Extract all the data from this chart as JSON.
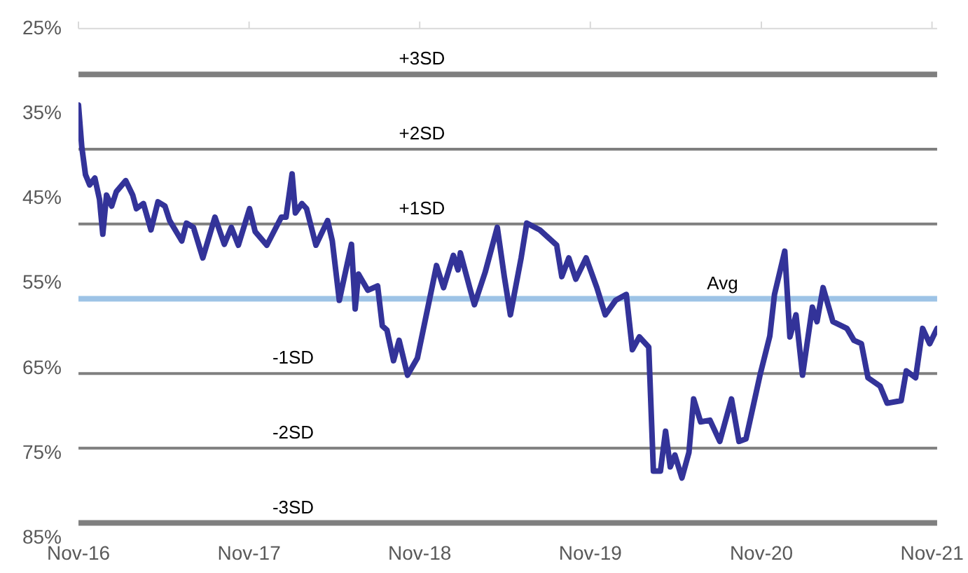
{
  "chart_data": {
    "type": "line",
    "x": [
      "2016-11-01",
      "2016-11-08",
      "2016-11-16",
      "2016-11-25",
      "2016-12-06",
      "2016-12-16",
      "2016-12-23",
      "2016-12-31",
      "2017-01-11",
      "2017-01-21",
      "2017-02-10",
      "2017-02-25",
      "2017-03-05",
      "2017-03-20",
      "2017-04-05",
      "2017-04-20",
      "2017-05-05",
      "2017-05-15",
      "2017-06-10",
      "2017-06-20",
      "2017-07-05",
      "2017-07-25",
      "2017-08-20",
      "2017-09-09",
      "2017-09-24",
      "2017-10-09",
      "2017-11-02",
      "2017-11-14",
      "2017-12-09",
      "2018-01-09",
      "2018-01-19",
      "2018-02-01",
      "2018-02-08",
      "2018-02-22",
      "2018-03-04",
      "2018-03-24",
      "2018-04-18",
      "2018-04-28",
      "2018-05-13",
      "2018-06-08",
      "2018-06-16",
      "2018-06-23",
      "2018-07-13",
      "2018-08-03",
      "2018-08-13",
      "2018-08-23",
      "2018-09-06",
      "2018-09-18",
      "2018-10-06",
      "2018-10-27",
      "2018-12-07",
      "2018-12-22",
      "2019-01-12",
      "2019-01-22",
      "2019-01-27",
      "2019-02-16",
      "2019-02-26",
      "2019-03-21",
      "2019-04-16",
      "2019-05-01",
      "2019-05-14",
      "2019-06-06",
      "2019-06-18",
      "2019-07-16",
      "2019-08-21",
      "2019-09-01",
      "2019-09-16",
      "2019-10-01",
      "2019-10-23",
      "2019-11-15",
      "2019-12-03",
      "2019-12-25",
      "2020-01-17",
      "2020-01-30",
      "2020-02-14",
      "2020-03-05",
      "2020-03-15",
      "2020-03-30",
      "2020-04-10",
      "2020-04-20",
      "2020-04-30",
      "2020-05-15",
      "2020-05-30",
      "2020-06-09",
      "2020-06-24",
      "2020-07-14",
      "2020-08-04",
      "2020-08-29",
      "2020-09-14",
      "2020-09-29",
      "2020-10-29",
      "2020-11-19",
      "2020-11-29",
      "2020-12-21",
      "2021-01-01",
      "2021-01-14",
      "2021-01-28",
      "2021-02-18",
      "2021-02-28",
      "2021-03-13",
      "2021-04-03",
      "2021-05-03",
      "2021-05-18",
      "2021-06-03",
      "2021-06-17",
      "2021-07-13",
      "2021-07-28",
      "2021-08-27",
      "2021-09-07",
      "2021-09-27",
      "2021-10-12",
      "2021-10-27",
      "2021-11-12"
    ],
    "series": [
      {
        "color": "#333399",
        "values": [
          34.0,
          38.9,
          42.2,
          43.4,
          42.6,
          45.1,
          49.2,
          44.6,
          45.9,
          44.2,
          42.9,
          44.6,
          46.2,
          45.6,
          48.7,
          45.4,
          45.9,
          47.6,
          50.0,
          47.9,
          48.4,
          52.0,
          47.2,
          50.4,
          48.4,
          50.5,
          46.2,
          48.9,
          50.5,
          47.2,
          47.2,
          42.1,
          46.7,
          45.6,
          46.2,
          50.5,
          47.6,
          50.0,
          57.0,
          50.4,
          58.0,
          53.9,
          55.8,
          55.3,
          60.0,
          60.5,
          64.1,
          61.7,
          65.8,
          63.8,
          52.9,
          55.5,
          51.7,
          53.4,
          51.4,
          55.5,
          57.5,
          53.7,
          48.4,
          54.2,
          58.7,
          52.0,
          47.9,
          48.7,
          50.5,
          54.2,
          52.0,
          54.5,
          52.0,
          55.5,
          58.7,
          57.0,
          56.3,
          62.8,
          61.3,
          62.5,
          77.1,
          77.1,
          72.4,
          76.6,
          75.2,
          77.9,
          74.9,
          68.6,
          71.3,
          71.1,
          73.6,
          68.6,
          73.6,
          73.3,
          65.8,
          61.2,
          56.3,
          51.2,
          61.3,
          58.7,
          65.8,
          57.8,
          59.5,
          55.5,
          59.5,
          60.3,
          61.7,
          62.1,
          66.1,
          67.1,
          69.1,
          68.8,
          65.3,
          66.1,
          60.3,
          62.1,
          60.3
        ]
      }
    ],
    "xlim": [
      "2016-11-01",
      "2021-11-12"
    ],
    "xticks": [
      {
        "value": "2016-11-01",
        "label": "Nov-16"
      },
      {
        "value": "2017-11-01",
        "label": "Nov-17"
      },
      {
        "value": "2018-11-01",
        "label": "Nov-18"
      },
      {
        "value": "2019-11-01",
        "label": "Nov-19"
      },
      {
        "value": "2020-11-01",
        "label": "Nov-20"
      },
      {
        "value": "2021-11-01",
        "label": "Nov-21"
      }
    ],
    "ylim": [
      85,
      25
    ],
    "yticks": [
      {
        "value": 25,
        "label": "25%"
      },
      {
        "value": 35,
        "label": "35%"
      },
      {
        "value": 45,
        "label": "45%"
      },
      {
        "value": 55,
        "label": "55%"
      },
      {
        "value": 65,
        "label": "65%"
      },
      {
        "value": 75,
        "label": "75%"
      },
      {
        "value": 85,
        "label": "85%"
      }
    ],
    "ref_lines": [
      {
        "axis": "y",
        "value": 30.4,
        "label": "+3SD",
        "color": "#7f7f7f"
      },
      {
        "axis": "y",
        "value": 39.2,
        "label": "+2SD",
        "color": "#7f7f7f"
      },
      {
        "axis": "y",
        "value": 48.0,
        "label": "+1SD",
        "color": "#7f7f7f"
      },
      {
        "axis": "y",
        "value": 56.8,
        "label": "Avg",
        "color": "#9dc3e6"
      },
      {
        "axis": "y",
        "value": 65.6,
        "label": "-1SD",
        "color": "#7f7f7f"
      },
      {
        "axis": "y",
        "value": 74.4,
        "label": "-2SD",
        "color": "#7f7f7f"
      },
      {
        "axis": "y",
        "value": 83.2,
        "label": "-3SD",
        "color": "#7f7f7f"
      }
    ],
    "grid": false,
    "legend": false,
    "marker": "none",
    "line_style": "solid"
  }
}
